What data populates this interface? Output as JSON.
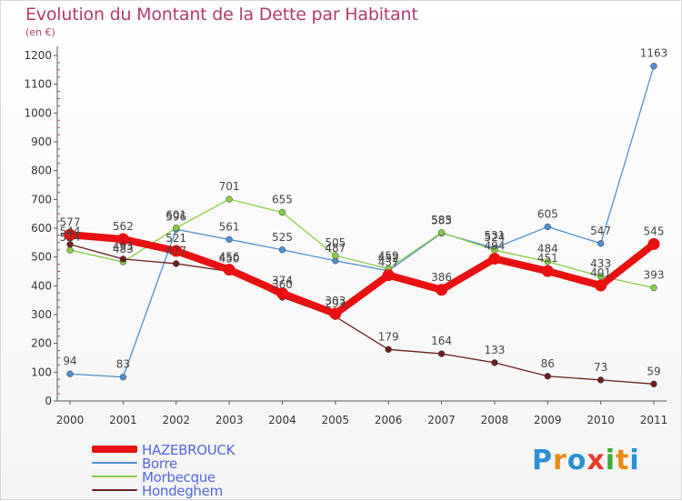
{
  "chart_data": {
    "type": "line",
    "title": "Evolution du Montant de la Dette par Habitant",
    "subtitle": "(en €)",
    "x": [
      "2000",
      "2001",
      "2002",
      "2003",
      "2004",
      "2005",
      "2006",
      "2007",
      "2008",
      "2009",
      "2010",
      "2011"
    ],
    "yticks": [
      0,
      100,
      200,
      300,
      400,
      500,
      600,
      700,
      800,
      900,
      1000,
      1100,
      1200
    ],
    "ylim": [
      0,
      1200
    ],
    "grid": false,
    "legend_position": "bottom-left",
    "series": [
      {
        "name": "HAZEBROUCK",
        "color": "#e81010",
        "values": [
          577,
          562,
          521,
          456,
          374,
          303,
          437,
          386,
          494,
          451,
          401,
          545
        ]
      },
      {
        "name": "Borre",
        "color": "#4f8fcf",
        "values": [
          94,
          83,
          596,
          561,
          525,
          487,
          452,
          583,
          531,
          605,
          547,
          1163
        ]
      },
      {
        "name": "Morbecque",
        "color": "#88cc44",
        "values": [
          524,
          483,
          601,
          701,
          655,
          505,
          459,
          585,
          524,
          484,
          433,
          393
        ]
      },
      {
        "name": "Hondeghem",
        "color": "#6b1f1f",
        "values": [
          544,
          493,
          477,
          450,
          360,
          293,
          179,
          164,
          133,
          86,
          73,
          59
        ]
      }
    ]
  },
  "branding": {
    "logo_text": "Proxiti",
    "logo_colors": [
      "#2b8fd6",
      "#e88a14",
      "#2b8fd6",
      "#e83a2a",
      "#3aaa35",
      "#e88a14",
      "#2b8fd6"
    ]
  }
}
